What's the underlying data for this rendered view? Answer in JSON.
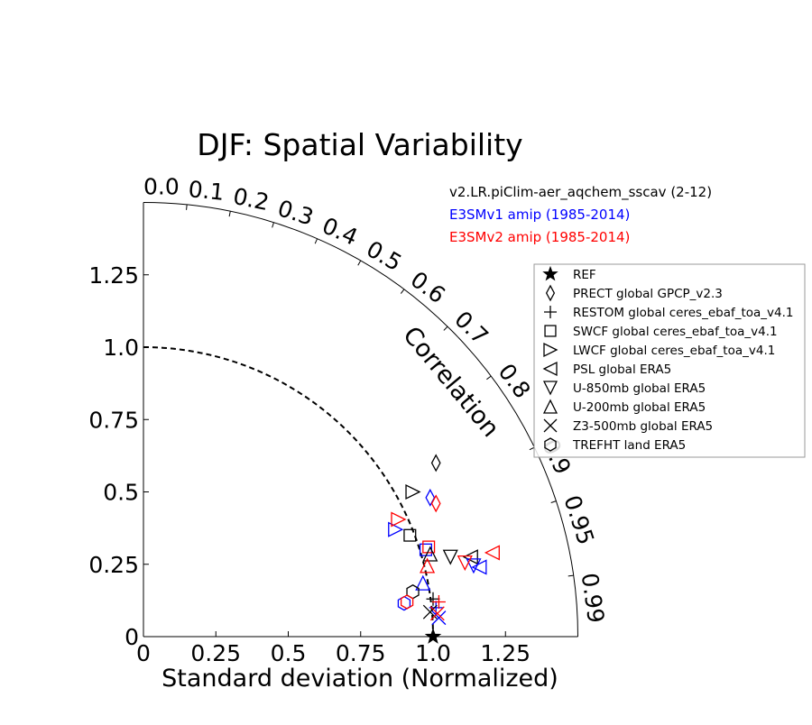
{
  "chart_data": {
    "type": "scatter",
    "subtype": "taylor-diagram",
    "title": "DJF: Spatial Variability",
    "xlabel": "Standard deviation (Normalized)",
    "ylabel": "",
    "correlation_label": "Correlation",
    "xlim": [
      0,
      1.5
    ],
    "ylim": [
      0,
      1.5
    ],
    "reference_std": 1.0,
    "x_ticks": [
      "0",
      "0.25",
      "0.5",
      "0.75",
      "1.0",
      "1.25"
    ],
    "y_ticks": [
      "0",
      "0.25",
      "0.5",
      "0.75",
      "1.0",
      "1.25"
    ],
    "correlation_ticks": [
      {
        "value": 0.0,
        "label": "0.0"
      },
      {
        "value": 0.1,
        "label": "0.1"
      },
      {
        "value": 0.2,
        "label": "0.2"
      },
      {
        "value": 0.3,
        "label": "0.3"
      },
      {
        "value": 0.4,
        "label": "0.4"
      },
      {
        "value": 0.5,
        "label": "0.5"
      },
      {
        "value": 0.6,
        "label": "0.6"
      },
      {
        "value": 0.7,
        "label": "0.7"
      },
      {
        "value": 0.8,
        "label": "0.8"
      },
      {
        "value": 0.9,
        "label": "0.9"
      },
      {
        "value": 0.95,
        "label": "0.95"
      },
      {
        "value": 0.99,
        "label": "0.99"
      }
    ],
    "runs": [
      {
        "name": "v2.LR.piClim-aer_aqchem_sscav (2-12)",
        "color": "#000000"
      },
      {
        "name": "E3SMv1 amip (1985-2014)",
        "color": "#0000ff"
      },
      {
        "name": "E3SMv2 amip (1985-2014)",
        "color": "#ff0000"
      }
    ],
    "legend_position": "right",
    "legend": [
      {
        "label": "REF",
        "marker": "star"
      },
      {
        "label": "PRECT global GPCP_v2.3",
        "marker": "diamond"
      },
      {
        "label": "RESTOM global ceres_ebaf_toa_v4.1",
        "marker": "plus"
      },
      {
        "label": "SWCF global ceres_ebaf_toa_v4.1",
        "marker": "square"
      },
      {
        "label": "LWCF global ceres_ebaf_toa_v4.1",
        "marker": "triangle-right"
      },
      {
        "label": "PSL global ERA5",
        "marker": "triangle-left"
      },
      {
        "label": "U-850mb global ERA5",
        "marker": "triangle-down"
      },
      {
        "label": "U-200mb global ERA5",
        "marker": "triangle-up"
      },
      {
        "label": "Z3-500mb global ERA5",
        "marker": "x"
      },
      {
        "label": "TREFHT land ERA5",
        "marker": "hexagon"
      }
    ],
    "points": [
      {
        "run": 0,
        "marker": "star",
        "x": 1.0,
        "y": 0.0
      },
      {
        "run": 0,
        "marker": "diamond",
        "x": 1.01,
        "y": 0.6
      },
      {
        "run": 1,
        "marker": "diamond",
        "x": 0.99,
        "y": 0.48
      },
      {
        "run": 2,
        "marker": "diamond",
        "x": 1.01,
        "y": 0.46
      },
      {
        "run": 0,
        "marker": "plus",
        "x": 1.0,
        "y": 0.13
      },
      {
        "run": 1,
        "marker": "plus",
        "x": 1.01,
        "y": 0.1
      },
      {
        "run": 2,
        "marker": "plus",
        "x": 1.02,
        "y": 0.12
      },
      {
        "run": 0,
        "marker": "square",
        "x": 0.92,
        "y": 0.35
      },
      {
        "run": 1,
        "marker": "square",
        "x": 0.975,
        "y": 0.3
      },
      {
        "run": 2,
        "marker": "square",
        "x": 0.985,
        "y": 0.31
      },
      {
        "run": 0,
        "marker": "triangle-right",
        "x": 0.93,
        "y": 0.5
      },
      {
        "run": 1,
        "marker": "triangle-right",
        "x": 0.87,
        "y": 0.37
      },
      {
        "run": 2,
        "marker": "triangle-right",
        "x": 0.88,
        "y": 0.405
      },
      {
        "run": 0,
        "marker": "triangle-left",
        "x": 1.13,
        "y": 0.275
      },
      {
        "run": 1,
        "marker": "triangle-left",
        "x": 1.16,
        "y": 0.24
      },
      {
        "run": 2,
        "marker": "triangle-left",
        "x": 1.205,
        "y": 0.29
      },
      {
        "run": 0,
        "marker": "triangle-down",
        "x": 1.06,
        "y": 0.275
      },
      {
        "run": 1,
        "marker": "triangle-down",
        "x": 1.14,
        "y": 0.245
      },
      {
        "run": 2,
        "marker": "triangle-down",
        "x": 1.11,
        "y": 0.255
      },
      {
        "run": 0,
        "marker": "triangle-up",
        "x": 0.99,
        "y": 0.285
      },
      {
        "run": 1,
        "marker": "triangle-up",
        "x": 0.965,
        "y": 0.185
      },
      {
        "run": 2,
        "marker": "triangle-up",
        "x": 0.98,
        "y": 0.245
      },
      {
        "run": 0,
        "marker": "x",
        "x": 0.99,
        "y": 0.085
      },
      {
        "run": 1,
        "marker": "x",
        "x": 1.02,
        "y": 0.065
      },
      {
        "run": 2,
        "marker": "x",
        "x": 1.015,
        "y": 0.08
      },
      {
        "run": 0,
        "marker": "hexagon",
        "x": 0.93,
        "y": 0.155
      },
      {
        "run": 1,
        "marker": "hexagon",
        "x": 0.9,
        "y": 0.115
      },
      {
        "run": 2,
        "marker": "hexagon",
        "x": 0.91,
        "y": 0.12
      }
    ]
  }
}
